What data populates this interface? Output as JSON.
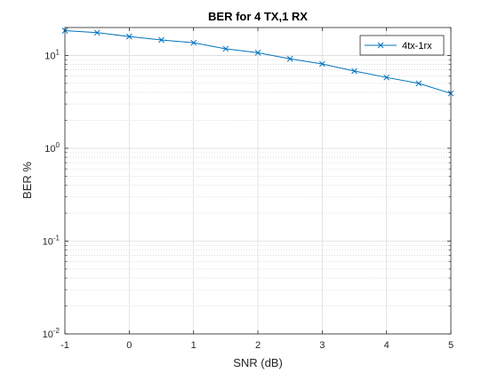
{
  "chart_data": {
    "type": "line",
    "title": "BER for 4 TX,1 RX",
    "xlabel": "SNR (dB)",
    "ylabel": "BER %",
    "xlim": [
      -1,
      5
    ],
    "ylim": [
      0.01,
      20
    ],
    "yscale": "log",
    "grid": true,
    "minor_grid": true,
    "legend_position": "top-right",
    "x_ticks": [
      -1,
      0,
      1,
      2,
      3,
      4,
      5
    ],
    "y_ticks": [
      0.01,
      0.1,
      1,
      10
    ],
    "y_tick_labels": [
      {
        "base": "10",
        "exp": "-2"
      },
      {
        "base": "10",
        "exp": "-1"
      },
      {
        "base": "10",
        "exp": "0"
      },
      {
        "base": "10",
        "exp": "1"
      }
    ],
    "series": [
      {
        "name": "4tx-1rx",
        "color": "#0072BD",
        "marker": "x",
        "x": [
          -1,
          -0.5,
          0,
          0.5,
          1,
          1.5,
          2,
          2.5,
          3,
          3.5,
          4,
          4.5,
          5
        ],
        "y": [
          18.5,
          17.6,
          16.0,
          14.7,
          13.7,
          11.8,
          10.7,
          9.2,
          8.1,
          6.8,
          5.8,
          5.0,
          3.9
        ]
      }
    ]
  }
}
